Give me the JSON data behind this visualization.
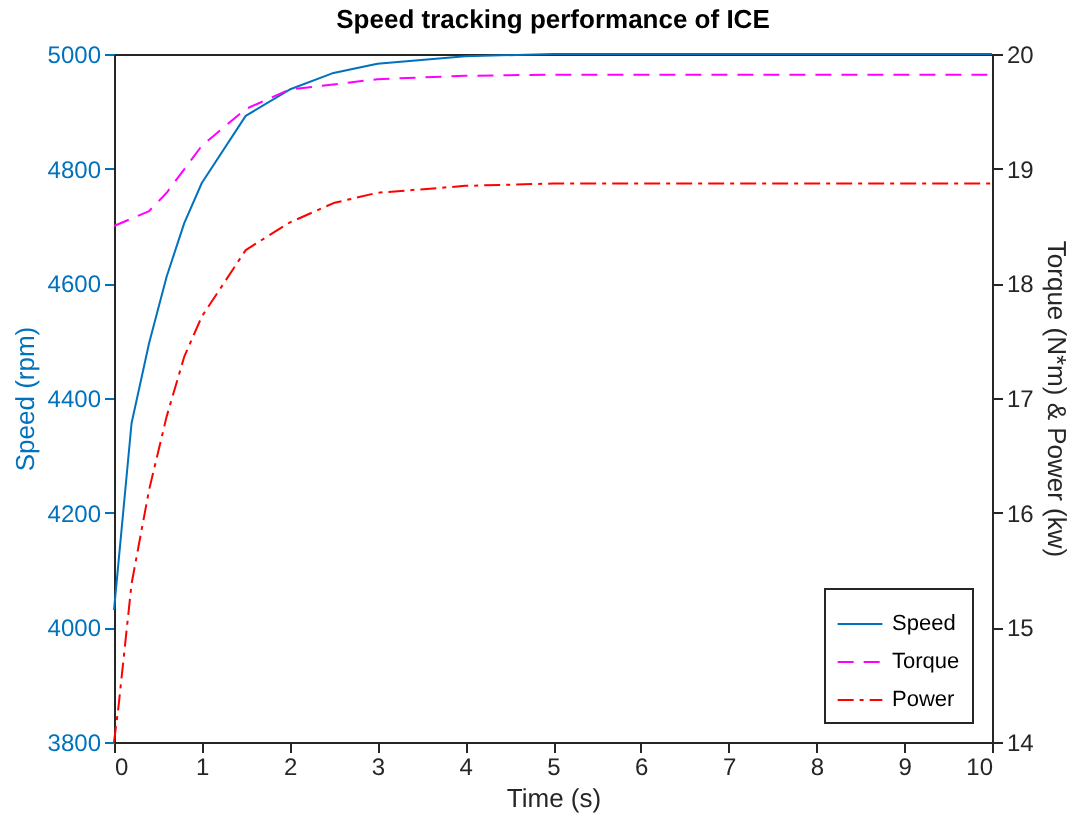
{
  "chart_data": {
    "type": "line",
    "title": "Speed tracking performance of ICE",
    "xlabel": "Time (s)",
    "ylabel": "Speed (rpm)",
    "y2label": "Torque (N*m) & Power (kw)",
    "xlim": [
      0,
      10
    ],
    "xticks": [
      0,
      1,
      2,
      3,
      4,
      5,
      6,
      7,
      8,
      9,
      10
    ],
    "ylim": [
      3800,
      5000
    ],
    "yticks": [
      3800,
      4000,
      4200,
      4400,
      4600,
      4800,
      5000
    ],
    "y2lim": [
      14,
      20
    ],
    "y2ticks": [
      14,
      15,
      16,
      17,
      18,
      19,
      20
    ],
    "legend": "bottom right",
    "grid": false,
    "marker": "none",
    "series": [
      {
        "name": "Speed",
        "color": "#0072bd",
        "line_style": "solid",
        "x": [
          0,
          0.2,
          0.4,
          0.6,
          0.8,
          1,
          1.5,
          2,
          2.5,
          3,
          4,
          5,
          6,
          7,
          8,
          9,
          10
        ],
        "values": [
          4030,
          4356,
          4496,
          4612,
          4705,
          4775,
          4892,
          4938,
          4967,
          4983,
          4996,
          5000,
          5000,
          5000,
          5000,
          5000,
          5000
        ]
      },
      {
        "name": "Torque",
        "color": "#ff00ff",
        "line_style": "dashed",
        "axis": "y2",
        "x": [
          0,
          0.4,
          0.6,
          1,
          1.5,
          2,
          3,
          4,
          5,
          6,
          7,
          8,
          9,
          10
        ],
        "values": [
          18.5,
          18.63,
          18.79,
          19.2,
          19.52,
          19.69,
          19.78,
          19.81,
          19.82,
          19.82,
          19.82,
          19.82,
          19.82,
          19.82
        ]
      },
      {
        "name": "Power",
        "color": "#ff0000",
        "line_style": "dashdot",
        "axis": "y2",
        "x": [
          0,
          0.05,
          0.2,
          0.4,
          0.6,
          0.8,
          1,
          1.5,
          2,
          2.5,
          3,
          4,
          5,
          6,
          7,
          8,
          9,
          10
        ],
        "values": [
          14.0,
          14.3,
          15.38,
          16.2,
          16.84,
          17.36,
          17.71,
          18.29,
          18.53,
          18.7,
          18.79,
          18.85,
          18.87,
          18.87,
          18.87,
          18.87,
          18.87,
          18.87
        ]
      }
    ]
  }
}
